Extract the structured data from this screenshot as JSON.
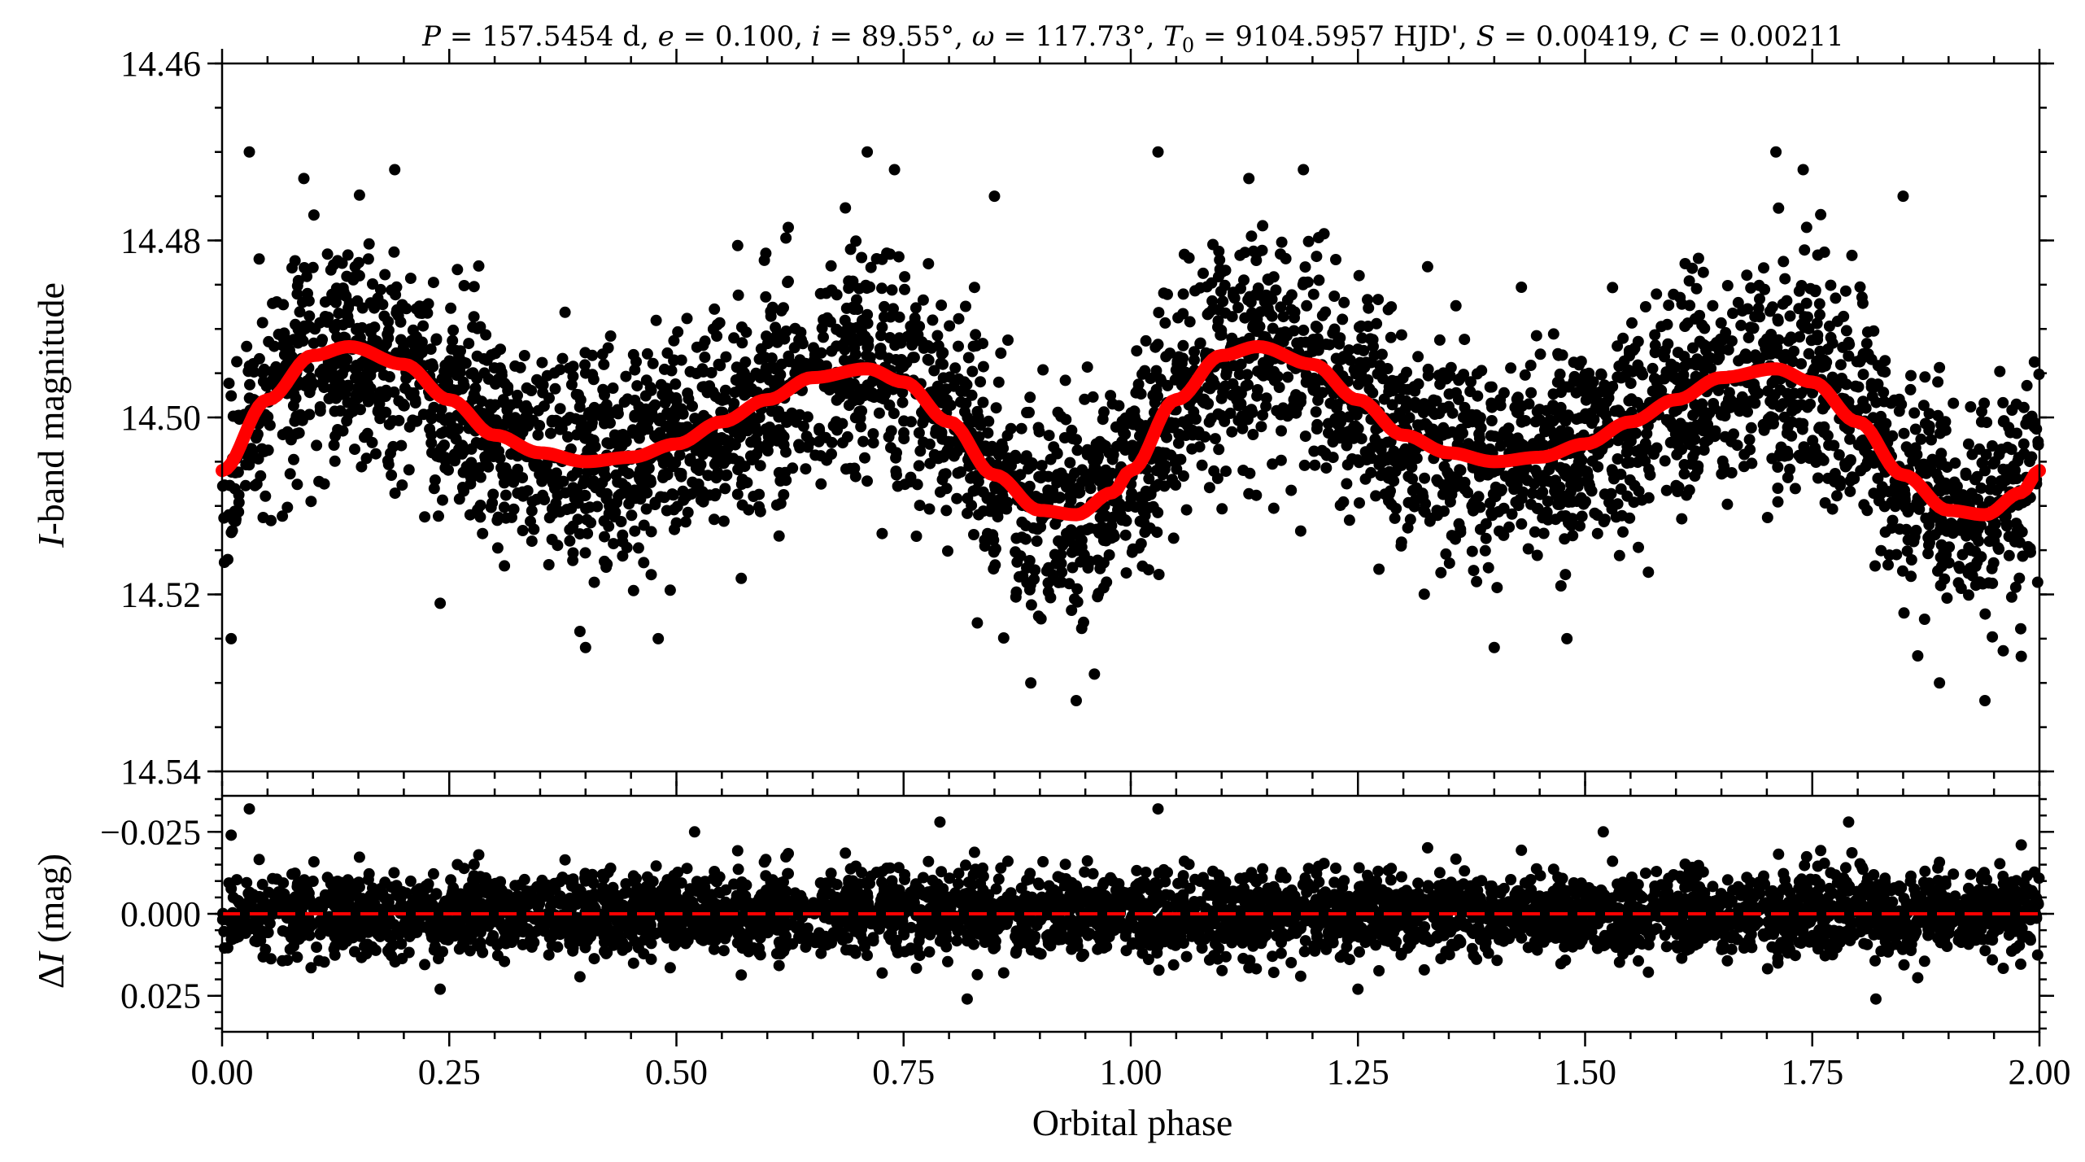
{
  "chart_data": [
    {
      "panel": "light-curve",
      "type": "scatter",
      "title": "P = 157.5454 d, e = 0.100, i = 89.55°, ω = 117.73°, T0 = 9104.5957 HJD', S = 0.00419, C = 0.00211",
      "title_parts": {
        "P": "157.5454 d",
        "e": "0.100",
        "i": "89.55°",
        "omega": "117.73°",
        "T0": "9104.5957 HJD'",
        "S": "0.00419",
        "C": "0.00211"
      },
      "ylabel_italic": "I",
      "ylabel_rest": "-band magnitude",
      "ylim": [
        14.54,
        14.46
      ],
      "y_inverted": true,
      "xlim": [
        0.0,
        2.0
      ],
      "yticks": [
        "14.46",
        "14.48",
        "14.50",
        "14.52",
        "14.54"
      ],
      "yticks_values": [
        14.46,
        14.48,
        14.5,
        14.52,
        14.54
      ],
      "grid": false,
      "series": [
        {
          "kind": "observations",
          "color": "#000000",
          "estimated_scatter_sigma_mag": 0.006,
          "outlier_points": [
            {
              "x": 0.03,
              "y": 14.47
            },
            {
              "x": 0.09,
              "y": 14.473
            },
            {
              "x": 0.19,
              "y": 14.472
            },
            {
              "x": 0.71,
              "y": 14.47
            },
            {
              "x": 0.74,
              "y": 14.472
            },
            {
              "x": 0.85,
              "y": 14.475
            },
            {
              "x": 1.03,
              "y": 14.47
            },
            {
              "x": 1.13,
              "y": 14.473
            },
            {
              "x": 1.19,
              "y": 14.472
            },
            {
              "x": 1.71,
              "y": 14.47
            },
            {
              "x": 1.74,
              "y": 14.472
            },
            {
              "x": 1.85,
              "y": 14.475
            },
            {
              "x": 0.4,
              "y": 14.526
            },
            {
              "x": 0.48,
              "y": 14.525
            },
            {
              "x": 0.89,
              "y": 14.53
            },
            {
              "x": 0.94,
              "y": 14.532
            },
            {
              "x": 0.96,
              "y": 14.529
            },
            {
              "x": 1.4,
              "y": 14.526
            },
            {
              "x": 1.48,
              "y": 14.525
            },
            {
              "x": 1.89,
              "y": 14.53
            },
            {
              "x": 1.94,
              "y": 14.532
            },
            {
              "x": 1.98,
              "y": 14.527
            },
            {
              "x": 0.01,
              "y": 14.525
            },
            {
              "x": 0.24,
              "y": 14.521
            }
          ]
        },
        {
          "kind": "model",
          "color": "#ff0000",
          "x": [
            0.0,
            0.05,
            0.1,
            0.14,
            0.2,
            0.25,
            0.3,
            0.35,
            0.4,
            0.45,
            0.5,
            0.55,
            0.6,
            0.65,
            0.71,
            0.75,
            0.8,
            0.85,
            0.9,
            0.94,
            0.98,
            1.0,
            1.05,
            1.1,
            1.14,
            1.2,
            1.25,
            1.3,
            1.35,
            1.4,
            1.45,
            1.5,
            1.55,
            1.6,
            1.65,
            1.71,
            1.75,
            1.8,
            1.85,
            1.9,
            1.94,
            1.98,
            2.0
          ],
          "y": [
            14.506,
            14.498,
            14.493,
            14.492,
            14.494,
            14.498,
            14.502,
            14.504,
            14.505,
            14.5045,
            14.503,
            14.5005,
            14.498,
            14.4955,
            14.4945,
            14.496,
            14.5005,
            14.5065,
            14.5105,
            14.511,
            14.5085,
            14.506,
            14.498,
            14.493,
            14.492,
            14.494,
            14.498,
            14.502,
            14.504,
            14.505,
            14.5045,
            14.503,
            14.5005,
            14.498,
            14.4955,
            14.4945,
            14.496,
            14.5005,
            14.5065,
            14.5105,
            14.511,
            14.5085,
            14.506
          ]
        }
      ]
    },
    {
      "panel": "residuals",
      "type": "scatter",
      "xlabel": "Orbital phase",
      "ylabel_delta": "Δ",
      "ylabel_italic": "I",
      "ylabel_rest": " (mag)",
      "xlim": [
        0.0,
        2.0
      ],
      "ylim": [
        0.036,
        -0.036
      ],
      "y_inverted": true,
      "xticks": [
        "0.00",
        "0.25",
        "0.50",
        "0.75",
        "1.00",
        "1.25",
        "1.50",
        "1.75",
        "2.00"
      ],
      "xticks_values": [
        0.0,
        0.25,
        0.5,
        0.75,
        1.0,
        1.25,
        1.5,
        1.75,
        2.0
      ],
      "yticks": [
        "−0.025",
        "0.000",
        "0.025"
      ],
      "yticks_values": [
        -0.025,
        0.0,
        0.025
      ],
      "grid": false,
      "zero_line": {
        "y": 0.0,
        "style": "dashed",
        "color": "#ff0000"
      },
      "series": [
        {
          "kind": "residuals",
          "color": "#000000",
          "estimated_scatter_sigma_mag": 0.006,
          "outlier_points": [
            {
              "x": 0.03,
              "y": -0.032
            },
            {
              "x": 0.79,
              "y": -0.028
            },
            {
              "x": 1.03,
              "y": -0.032
            },
            {
              "x": 1.79,
              "y": -0.028
            },
            {
              "x": 0.82,
              "y": 0.026
            },
            {
              "x": 1.25,
              "y": 0.023
            },
            {
              "x": 1.82,
              "y": 0.026
            },
            {
              "x": 0.24,
              "y": 0.023
            },
            {
              "x": 0.01,
              "y": -0.024
            },
            {
              "x": 0.52,
              "y": -0.025
            },
            {
              "x": 1.52,
              "y": -0.025
            },
            {
              "x": 1.98,
              "y": -0.021
            }
          ]
        }
      ]
    }
  ]
}
